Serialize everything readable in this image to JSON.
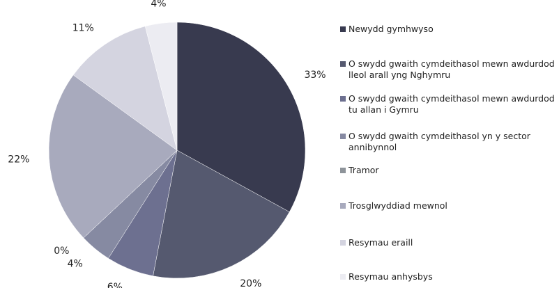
{
  "chart_data": {
    "type": "pie",
    "categories": [
      "Newydd gymhwyso",
      "O swydd gwaith cymdeithasol mewn awdurdod lleol arall yng Nghymru",
      "O swydd gwaith cymdeithasol mewn awdurdod tu allan i Gymru",
      "O swydd gwaith cymdeithasol yn y sector annibynnol",
      "Tramor",
      "Trosglwyddiad mewnol",
      "Resymau eraill",
      "Resymau anhysbys"
    ],
    "values": [
      33,
      20,
      6,
      4,
      0,
      22,
      11,
      4
    ],
    "value_labels": [
      "33%",
      "20%",
      "6%",
      "4%",
      "0%",
      "22%",
      "11%",
      "4%"
    ],
    "colors": [
      "#383a4f",
      "#55596f",
      "#6d7090",
      "#868aa2",
      "#8e949a",
      "#a8aabd",
      "#d4d4e0",
      "#ececf2"
    ],
    "legend": "right"
  }
}
